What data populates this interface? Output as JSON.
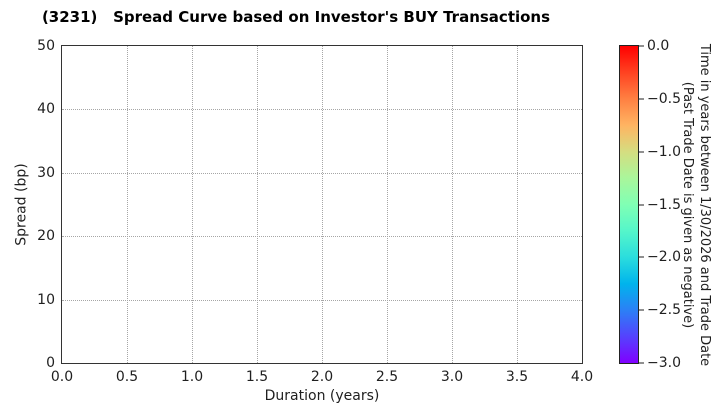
{
  "chart_data": {
    "type": "scatter",
    "title": "(3231)   Spread Curve based on Investor's BUY Transactions",
    "xlabel": "Duration (years)",
    "ylabel": "Spread (bp)",
    "xlim": [
      0.0,
      4.0
    ],
    "ylim": [
      0,
      50
    ],
    "x_tick_values": [
      0.0,
      0.5,
      1.0,
      1.5,
      2.0,
      2.5,
      3.0,
      3.5,
      4.0
    ],
    "x_tick_labels": [
      "0.0",
      "0.5",
      "1.0",
      "1.5",
      "2.0",
      "2.5",
      "3.0",
      "3.5",
      "4.0"
    ],
    "y_tick_values": [
      0,
      10,
      20,
      30,
      40,
      50
    ],
    "y_tick_labels": [
      "0",
      "10",
      "20",
      "30",
      "40",
      "50"
    ],
    "grid": true,
    "grid_style": "dotted",
    "legend": "none",
    "points": [],
    "colorbar": {
      "label_line1": "Time in years between 1/30/2026 and Trade Date",
      "label_line2": "(Past Trade Date is given as negative)",
      "vmax": 0.0,
      "vmin": -3.0,
      "tick_values": [
        0.0,
        -0.5,
        -1.0,
        -1.5,
        -2.0,
        -2.5,
        -3.0
      ],
      "tick_labels": [
        "0.0",
        "−0.5",
        "−1.0",
        "−1.5",
        "−2.0",
        "−2.5",
        "−3.0"
      ],
      "colormap": "rainbow reversed (red at 0.0 to violet at -3.0)",
      "gradient_stops": [
        {
          "pos": 0.0,
          "color": "#ff0000"
        },
        {
          "pos": 0.0833,
          "color": "#ff4221"
        },
        {
          "pos": 0.1667,
          "color": "#ff8042"
        },
        {
          "pos": 0.25,
          "color": "#ffb462"
        },
        {
          "pos": 0.3333,
          "color": "#d5dd80"
        },
        {
          "pos": 0.4167,
          "color": "#aaf69b"
        },
        {
          "pos": 0.5,
          "color": "#80ffb4"
        },
        {
          "pos": 0.5833,
          "color": "#55f6ca"
        },
        {
          "pos": 0.6667,
          "color": "#2bdddd"
        },
        {
          "pos": 0.75,
          "color": "#00b4ec"
        },
        {
          "pos": 0.8333,
          "color": "#2b80f6"
        },
        {
          "pos": 0.9167,
          "color": "#5542fd"
        },
        {
          "pos": 1.0,
          "color": "#8000ff"
        }
      ]
    }
  }
}
